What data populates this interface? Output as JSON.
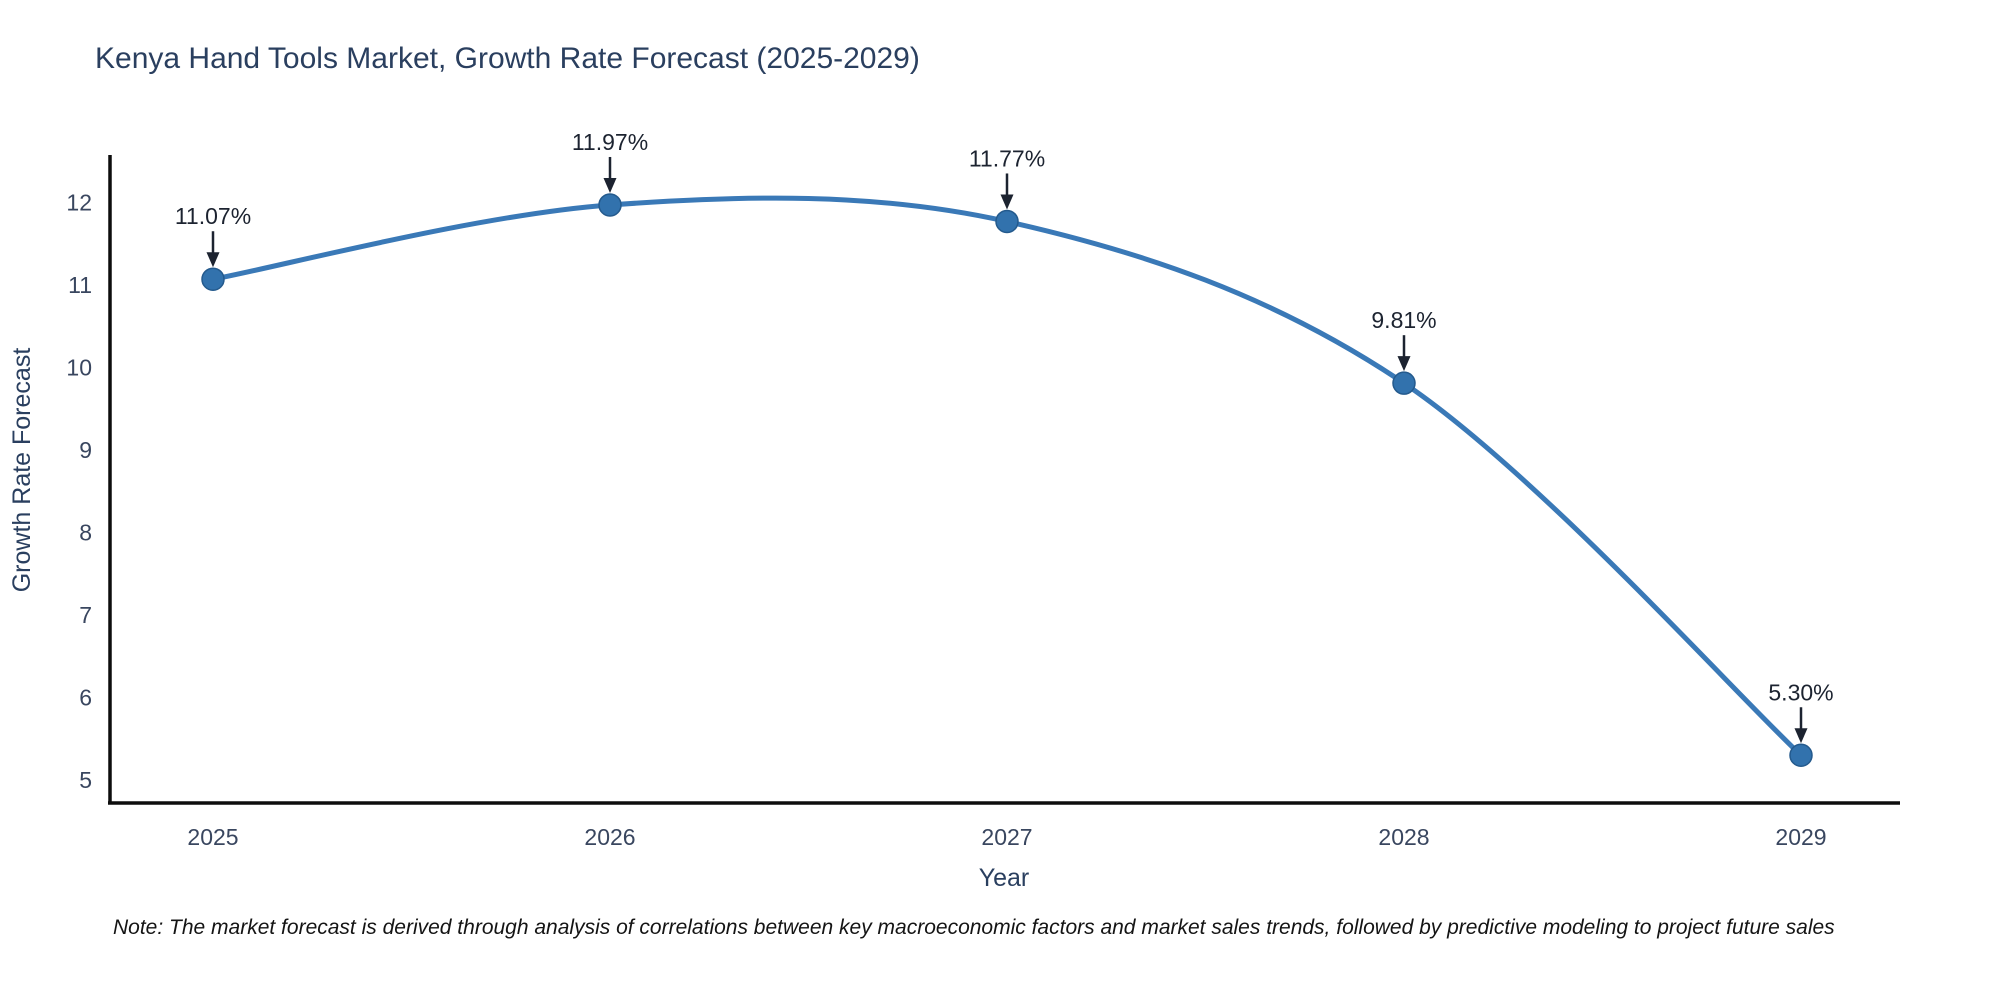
{
  "title": "Kenya Hand Tools Market, Growth Rate Forecast (2025-2029)",
  "note": "Note: The market forecast is derived through analysis of correlations between key macroeconomic factors and market sales trends, followed by predictive modeling to project future sales",
  "chart_data": {
    "type": "line",
    "title": "Kenya Hand Tools Market, Growth Rate Forecast (2025-2029)",
    "xlabel": "Year",
    "ylabel": "Growth Rate Forecast",
    "x": [
      "2025",
      "2026",
      "2027",
      "2028",
      "2029"
    ],
    "values": [
      11.07,
      11.97,
      11.77,
      9.81,
      5.3
    ],
    "point_labels": [
      "11.07%",
      "11.97%",
      "11.77%",
      "9.81%",
      "5.30%"
    ],
    "yticks": [
      5,
      6,
      7,
      8,
      9,
      10,
      11,
      12
    ],
    "ylim": [
      4.7,
      12.6
    ],
    "grid": false,
    "legend": "none",
    "smooth": true,
    "line_color": "#3a79b7",
    "marker_color": "#3272ad",
    "marker_edge_color": "#245a8d",
    "axis_color": "#0d0d0d",
    "tick_color": "#39465f",
    "title_color": "#2a3f5f",
    "annotation_color": "#1c2330",
    "background_color": "#ffffff"
  }
}
